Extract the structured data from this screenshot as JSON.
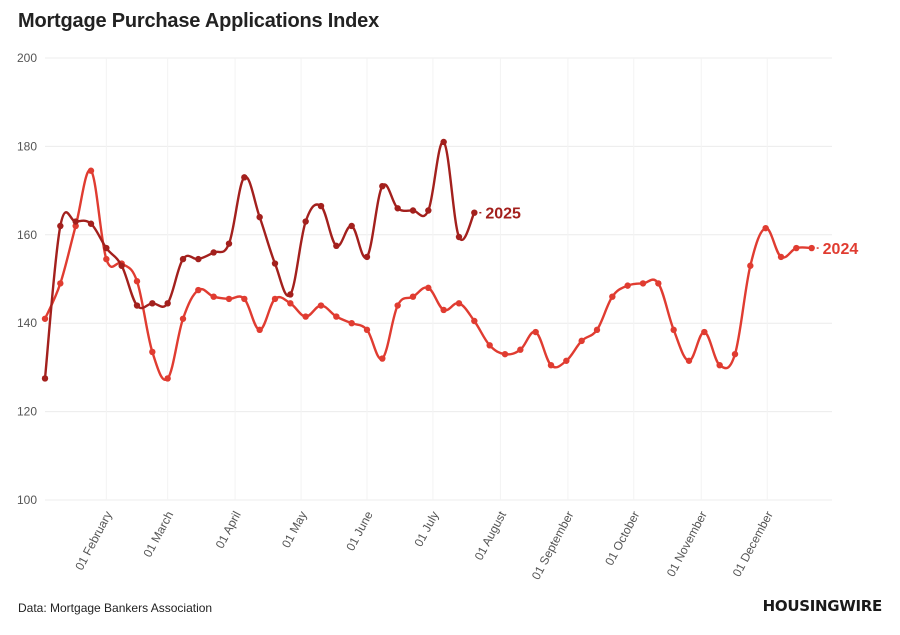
{
  "header": {
    "title": "Mortgage Purchase Applications Index"
  },
  "footer": {
    "source": "Data: Mortgage Bankers Association",
    "brand": "HOUSINGWIRE"
  },
  "chart_data": {
    "type": "line",
    "title": "Mortgage Purchase Applications Index",
    "xlabel": "",
    "ylabel": "",
    "ylim": [
      100,
      200
    ],
    "xlim_weeks": [
      0,
      51
    ],
    "yticks": [
      100,
      120,
      140,
      160,
      180,
      200
    ],
    "grid": true,
    "legend": "direct labels at line ends",
    "xticks": [
      {
        "label": "01 February",
        "week": 4
      },
      {
        "label": "01 March",
        "week": 8
      },
      {
        "label": "01 April",
        "week": 12.4
      },
      {
        "label": "01 May",
        "week": 16.7
      },
      {
        "label": "01 June",
        "week": 21
      },
      {
        "label": "01 July",
        "week": 25.3
      },
      {
        "label": "01 August",
        "week": 29.7
      },
      {
        "label": "01 September",
        "week": 34.1
      },
      {
        "label": "01 October",
        "week": 38.4
      },
      {
        "label": "01 November",
        "week": 42.8
      },
      {
        "label": "01 December",
        "week": 47.1
      }
    ],
    "series": [
      {
        "name": "2024",
        "label": "2024",
        "color": "#e03c31",
        "start_week": 0,
        "values": [
          141,
          149,
          162,
          174.5,
          154.5,
          153.5,
          149.5,
          133.5,
          127.5,
          141,
          147.5,
          146,
          145.5,
          145.5,
          138.5,
          145.5,
          144.5,
          141.5,
          144,
          141.5,
          140,
          138.5,
          132,
          144,
          146,
          148,
          143,
          144.5,
          140.5,
          135,
          133,
          134,
          138,
          130.5,
          131.5,
          136,
          138.5,
          146,
          148.5,
          149,
          149,
          138.5,
          131.5,
          138,
          130.5,
          133,
          153,
          161.5,
          155,
          157,
          157
        ]
      },
      {
        "name": "2025",
        "label": "2025",
        "color": "#a3201d",
        "start_week": 0,
        "values": [
          127.5,
          162,
          163,
          162.5,
          157,
          153,
          144,
          144.5,
          144.5,
          154.5,
          154.5,
          156,
          158,
          173,
          164,
          153.5,
          146.5,
          163,
          166.5,
          157.5,
          162,
          155,
          171,
          166,
          165.5,
          165.5,
          181,
          159.5,
          165
        ]
      }
    ]
  }
}
